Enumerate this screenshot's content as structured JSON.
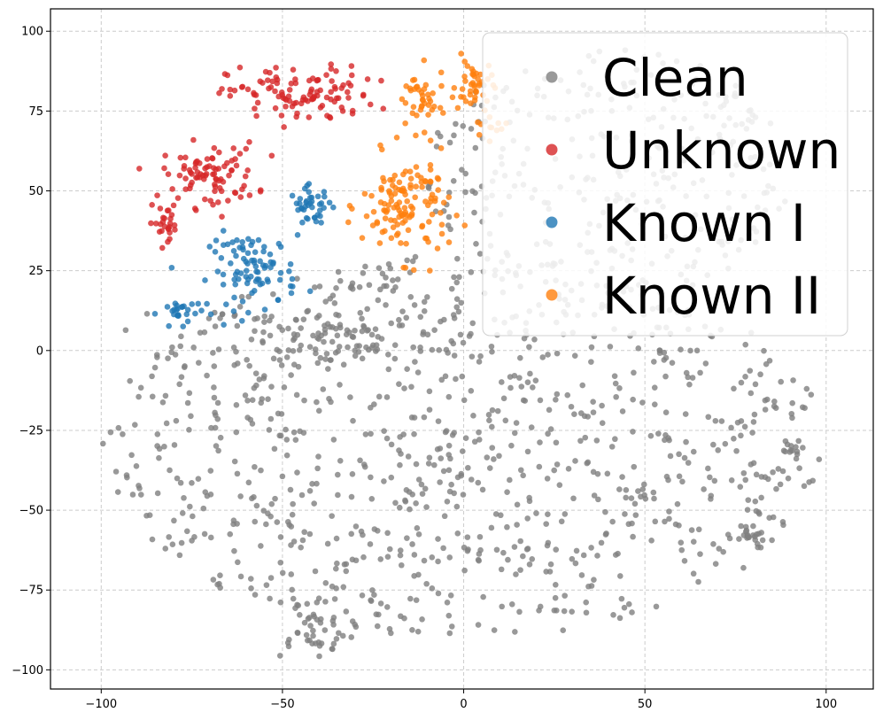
{
  "chart_data": {
    "type": "scatter",
    "title": "",
    "xlabel": "",
    "ylabel": "",
    "xlim": [
      -114,
      113
    ],
    "ylim": [
      -106,
      107
    ],
    "grid": true,
    "legend_position": "top-right",
    "x_ticks": [
      -100,
      -50,
      0,
      50,
      100
    ],
    "y_ticks": [
      -100,
      -75,
      -50,
      -25,
      0,
      25,
      50,
      75,
      100
    ],
    "x_tick_labels": [
      "−100",
      "−50",
      "0",
      "50",
      "100"
    ],
    "y_tick_labels": [
      "−100",
      "−75",
      "−50",
      "−25",
      "0",
      "25",
      "50",
      "75",
      "100"
    ],
    "series": [
      {
        "name": "Clean",
        "color": "#7f7f7f",
        "clusters": [
          {
            "cx": 0,
            "cy": -30,
            "rx": 100,
            "ry": 60,
            "n": 900
          },
          {
            "cx": 40,
            "cy": 55,
            "rx": 50,
            "ry": 40,
            "n": 300
          },
          {
            "cx": -35,
            "cy": 5,
            "rx": 40,
            "ry": 12,
            "n": 120
          },
          {
            "cx": -42,
            "cy": -88,
            "rx": 12,
            "ry": 8,
            "n": 40
          },
          {
            "cx": 90,
            "cy": -31,
            "rx": 3,
            "ry": 3,
            "n": 12
          },
          {
            "cx": 79,
            "cy": -58,
            "rx": 4,
            "ry": 4,
            "n": 14
          }
        ]
      },
      {
        "name": "Unknown",
        "color": "#d62728",
        "clusters": [
          {
            "cx": -45,
            "cy": 80,
            "rx": 20,
            "ry": 9,
            "n": 110
          },
          {
            "cx": -70,
            "cy": 55,
            "rx": 13,
            "ry": 10,
            "n": 90
          },
          {
            "cx": -82,
            "cy": 40,
            "rx": 5,
            "ry": 5,
            "n": 25
          }
        ]
      },
      {
        "name": "Known I",
        "color": "#1f77b4",
        "clusters": [
          {
            "cx": -58,
            "cy": 25,
            "rx": 12,
            "ry": 12,
            "n": 90
          },
          {
            "cx": -42,
            "cy": 45,
            "rx": 6,
            "ry": 6,
            "n": 40
          },
          {
            "cx": -78,
            "cy": 12,
            "rx": 6,
            "ry": 4,
            "n": 25
          }
        ]
      },
      {
        "name": "Known II",
        "color": "#ff7f0e",
        "clusters": [
          {
            "cx": -16,
            "cy": 45,
            "rx": 12,
            "ry": 16,
            "n": 130
          },
          {
            "cx": -12,
            "cy": 78,
            "rx": 7,
            "ry": 10,
            "n": 40
          },
          {
            "cx": 3,
            "cy": 83,
            "rx": 5,
            "ry": 8,
            "n": 40
          },
          {
            "cx": 7,
            "cy": 70,
            "rx": 5,
            "ry": 4,
            "n": 12
          }
        ]
      }
    ]
  }
}
